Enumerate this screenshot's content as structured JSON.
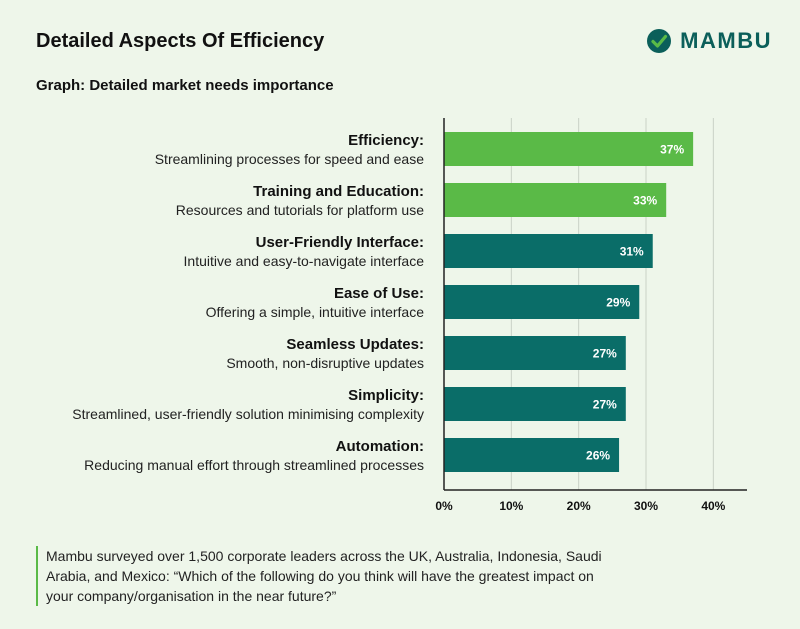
{
  "header": {
    "title": "Detailed Aspects Of Efficiency",
    "brand": "MAMBU",
    "subtitle": "Graph: Detailed market needs importance"
  },
  "note": "Mambu surveyed over 1,500 corporate leaders across the UK, Australia, Indonesia, Saudi Arabia, and Mexico: “Which of the following do you think will have the greatest impact on your company/organisation in the near future?”",
  "colors": {
    "highlight": "#5aba47",
    "primary": "#0a6d68",
    "grid": "#c9d1c6",
    "axis": "#222222",
    "brand": "#0b5f5a"
  },
  "chart_data": {
    "type": "bar",
    "orientation": "horizontal",
    "title": "Graph: Detailed market needs importance",
    "categories": [
      "Efficiency:",
      "Training and Education:",
      "User-Friendly Interface:",
      "Ease of Use:",
      "Seamless Updates:",
      "Simplicity:",
      "Automation:"
    ],
    "descriptions": [
      "Streamlining processes for speed and ease",
      "Resources and tutorials for platform use",
      "Intuitive and easy-to-navigate interface",
      "Offering a simple, intuitive interface",
      "Smooth, non-disruptive updates",
      "Streamlined, user-friendly solution minimising complexity",
      "Reducing manual effort through streamlined processes"
    ],
    "values": [
      37,
      33,
      31,
      29,
      27,
      27,
      26
    ],
    "value_labels": [
      "37%",
      "33%",
      "31%",
      "29%",
      "27%",
      "27%",
      "26%"
    ],
    "highlighted": [
      true,
      true,
      false,
      false,
      false,
      false,
      false
    ],
    "xlim": [
      0,
      45
    ],
    "xticks": [
      0,
      10,
      20,
      30,
      40
    ],
    "xtick_labels": [
      "0%",
      "10%",
      "20%",
      "30%",
      "40%"
    ],
    "grid": true,
    "xlabel": "",
    "ylabel": ""
  }
}
